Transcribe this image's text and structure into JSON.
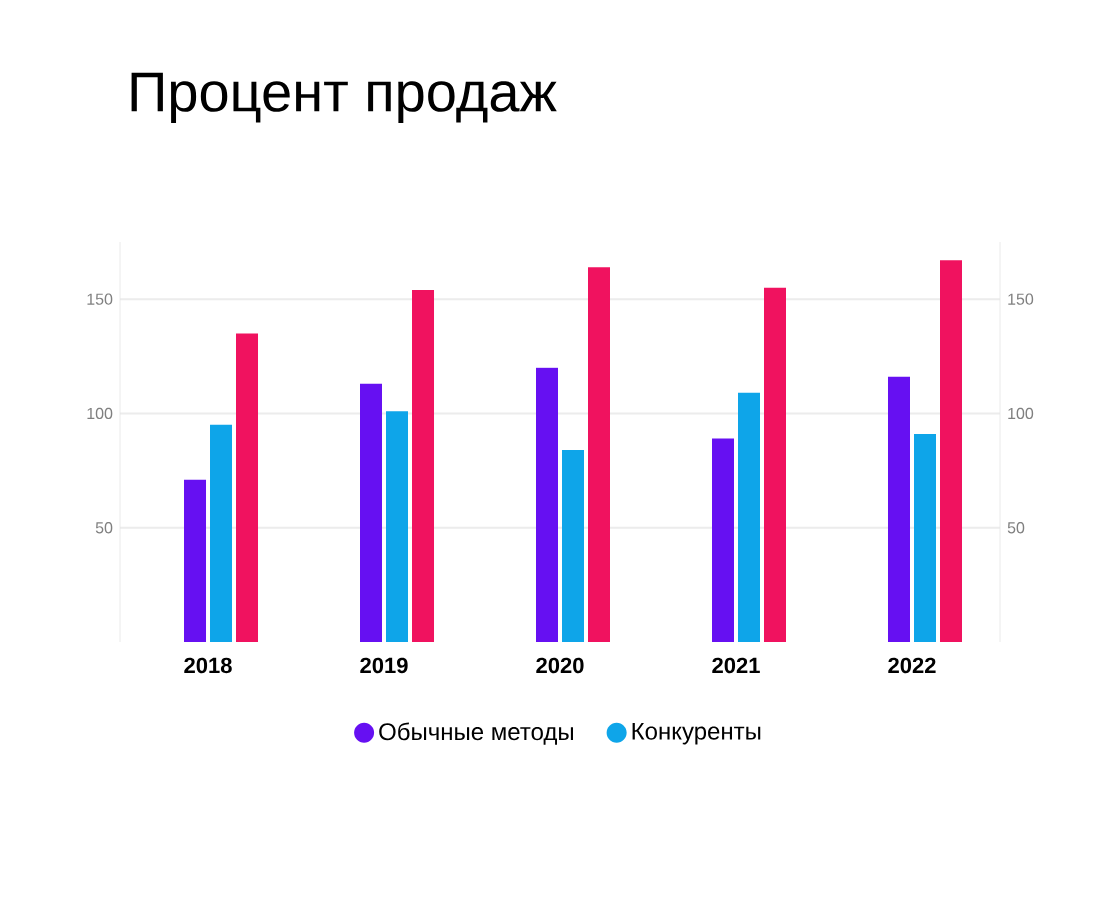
{
  "chart_data": {
    "type": "bar",
    "title": "Процент продаж",
    "categories": [
      "2018",
      "2019",
      "2020",
      "2021",
      "2022"
    ],
    "series": [
      {
        "name": "Обычные методы",
        "color": "#6610f2",
        "values": [
          71,
          113,
          120,
          89,
          116
        ]
      },
      {
        "name": "Конкуренты",
        "color": "#0ea5e9",
        "values": [
          95,
          101,
          84,
          109,
          91
        ]
      },
      {
        "color": "#f0125f",
        "values": [
          135,
          154,
          164,
          155,
          167
        ]
      }
    ],
    "ylim": [
      0,
      175
    ],
    "yticks": [
      50,
      100,
      150
    ],
    "y2lim": [
      0,
      175
    ],
    "y2ticks": [
      50,
      100,
      150
    ],
    "grid": "y",
    "legend": "bottom"
  }
}
